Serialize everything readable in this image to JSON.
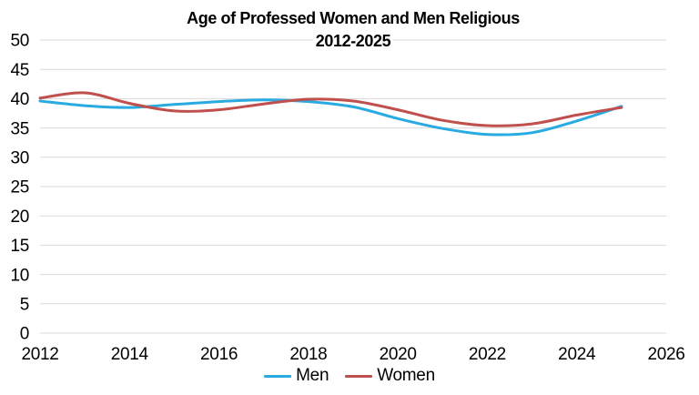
{
  "chart_data": {
    "type": "line",
    "title": "Age of Professed Women and Men Religious",
    "subtitle": "2012-2025",
    "x": [
      2012,
      2013,
      2014,
      2015,
      2016,
      2017,
      2018,
      2019,
      2020,
      2021,
      2022,
      2023,
      2024,
      2025
    ],
    "series": [
      {
        "name": "Men",
        "color": "#29ABE2",
        "values": [
          39.6,
          38.8,
          38.5,
          39.0,
          39.5,
          39.8,
          39.5,
          38.6,
          36.6,
          34.9,
          33.9,
          34.2,
          36.2,
          38.7
        ]
      },
      {
        "name": "Women",
        "color": "#C0504D",
        "values": [
          40.1,
          41.0,
          39.2,
          37.9,
          38.1,
          39.1,
          39.9,
          39.6,
          38.1,
          36.3,
          35.4,
          35.7,
          37.2,
          38.5
        ]
      }
    ],
    "xlabel": "",
    "ylabel": "",
    "x_axis_ticks": [
      2012,
      2014,
      2016,
      2018,
      2020,
      2022,
      2024,
      2026
    ],
    "y_axis_ticks": [
      0,
      5,
      10,
      15,
      20,
      25,
      30,
      35,
      40,
      45,
      50
    ],
    "xlim": [
      2012,
      2026
    ],
    "ylim": [
      0,
      50
    ],
    "grid": "horizontal",
    "line_style": "smooth",
    "legend_position": "bottom",
    "gridline_color": "#D9D9D9",
    "text_color": "#000000",
    "background": "#FFFFFF"
  }
}
